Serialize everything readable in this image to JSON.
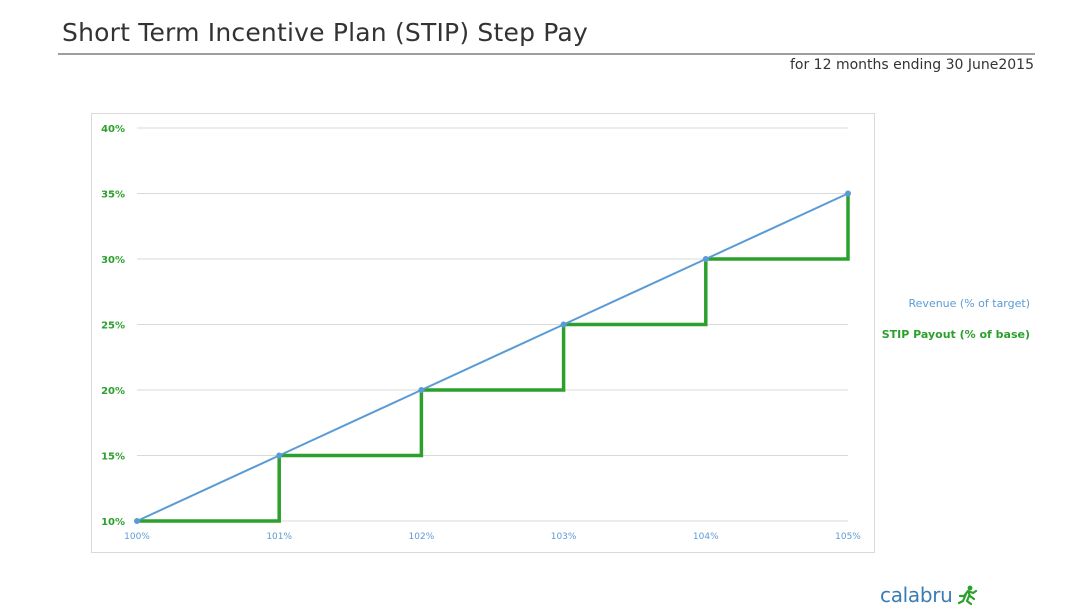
{
  "title": "Short Term Incentive Plan (STIP) Step Pay",
  "subtitle": "for 12 months ending 30 June2015",
  "legend": {
    "revenue": "Revenue (% of target)",
    "stip": "STIP Payout (% of base)"
  },
  "brand": "calabru",
  "colors": {
    "revenue": "#5b9bd5",
    "stip": "#2ca02c",
    "ytick": "#2ca02c",
    "xtick": "#5b9bd5",
    "grid": "#d9d9d9"
  },
  "chart_data": {
    "type": "line",
    "title": "",
    "xlabel": "",
    "ylabel": "",
    "x_ticks": [
      "100%",
      "101%",
      "102%",
      "103%",
      "104%",
      "105%"
    ],
    "x": [
      100,
      101,
      102,
      103,
      104,
      105
    ],
    "xlim": [
      100,
      105
    ],
    "y_ticks": [
      "10%",
      "15%",
      "20%",
      "25%",
      "30%",
      "35%",
      "40%"
    ],
    "ylim": [
      10,
      40
    ],
    "grid": true,
    "legend_position": "right",
    "series": [
      {
        "name": "Revenue (% of target)",
        "style": "line-with-markers",
        "x": [
          100,
          101,
          102,
          103,
          104,
          105
        ],
        "y": [
          10,
          15,
          20,
          25,
          30,
          35
        ]
      },
      {
        "name": "STIP Payout (% of base)",
        "style": "step",
        "x": [
          100,
          101,
          101,
          102,
          102,
          103,
          103,
          104,
          104,
          105,
          105
        ],
        "y": [
          10,
          10,
          15,
          15,
          20,
          20,
          25,
          25,
          30,
          30,
          35
        ]
      }
    ]
  }
}
